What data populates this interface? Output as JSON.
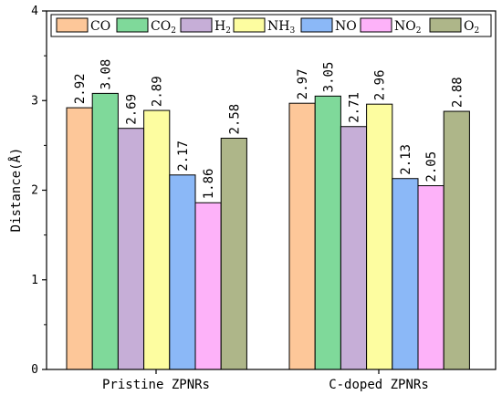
{
  "chart_data": {
    "type": "bar",
    "ylabel": "Distance(Å)",
    "ylim": [
      0,
      4
    ],
    "yticks": [
      "0",
      "1",
      "2",
      "3",
      "4"
    ],
    "categories": [
      "Pristine ZPNRs",
      "C-doped ZPNRs"
    ],
    "grid": false,
    "legend_position": "top",
    "series": [
      {
        "name": "CO",
        "subscript": "",
        "color": "#FDC799",
        "values": [
          2.92,
          2.97
        ],
        "labels": [
          "2.92",
          "2.97"
        ]
      },
      {
        "name": "CO",
        "subscript": "2",
        "color": "#7FD99A",
        "values": [
          3.08,
          3.05
        ],
        "labels": [
          "3.08",
          "3.05"
        ]
      },
      {
        "name": "H",
        "subscript": "2",
        "color": "#C6AED7",
        "values": [
          2.69,
          2.71
        ],
        "labels": [
          "2.69",
          "2.71"
        ]
      },
      {
        "name": "NH",
        "subscript": "3",
        "color": "#FDFDA0",
        "values": [
          2.89,
          2.96
        ],
        "labels": [
          "2.89",
          "2.96"
        ]
      },
      {
        "name": "NO",
        "subscript": "",
        "color": "#8BB8F7",
        "values": [
          2.17,
          2.13
        ],
        "labels": [
          "2.17",
          "2.13"
        ]
      },
      {
        "name": "NO",
        "subscript": "2",
        "color": "#FDB2F9",
        "values": [
          1.86,
          2.05
        ],
        "labels": [
          "1.86",
          "2.05"
        ]
      },
      {
        "name": "O",
        "subscript": "2",
        "color": "#AEB689",
        "values": [
          2.58,
          2.88
        ],
        "labels": [
          "2.58",
          "2.88"
        ]
      }
    ]
  }
}
